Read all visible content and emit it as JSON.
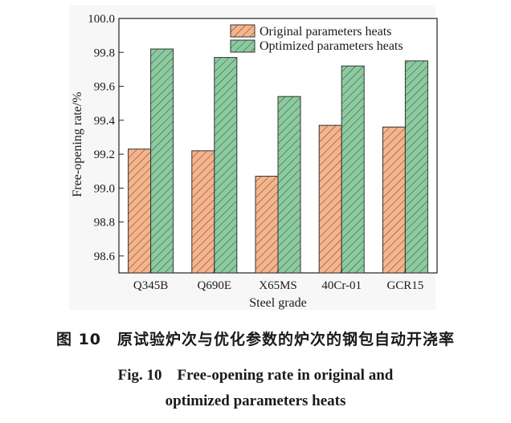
{
  "chart_data": {
    "type": "bar",
    "categories": [
      "Q345B",
      "Q690E",
      "X65MS",
      "40Cr-01",
      "GCR15"
    ],
    "series": [
      {
        "name": "Original parameters heats",
        "values": [
          99.23,
          99.22,
          99.07,
          99.37,
          99.36
        ],
        "color": "#f5b48c",
        "pattern": "diagonal-hatch"
      },
      {
        "name": "Optimized parameters heats",
        "values": [
          99.82,
          99.77,
          99.54,
          99.72,
          99.75
        ],
        "color": "#8ccaa0",
        "pattern": "diagonal-hatch"
      }
    ],
    "xlabel": "Steel grade",
    "ylabel": "Free-opening rate/%",
    "ylim": [
      98.5,
      100.0
    ],
    "yticks": [
      "98.6",
      "98.8",
      "99.0",
      "99.2",
      "99.4",
      "99.6",
      "99.8",
      "100.0"
    ],
    "legend": "top-right",
    "grid": false
  },
  "caption": {
    "cn": "图 10　原试验炉次与优化参数的炉次的钢包自动开浇率",
    "en_line1": "Fig. 10　Free-opening rate in original and",
    "en_line2": "optimized parameters heats"
  }
}
